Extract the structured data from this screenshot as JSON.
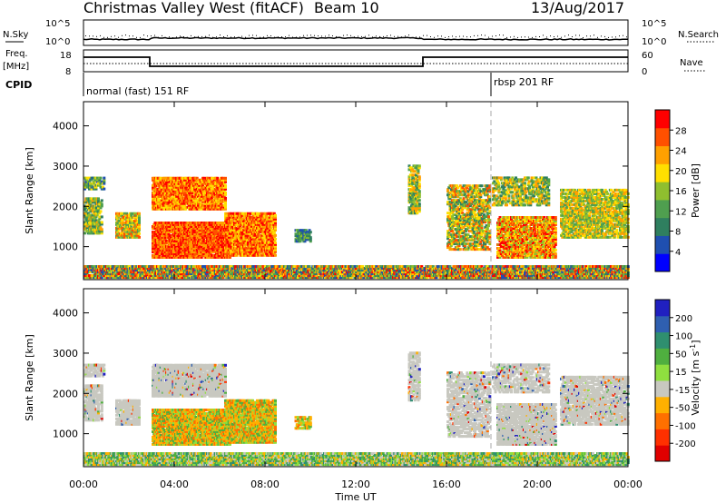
{
  "header": {
    "title": "Christmas Valley West (fitACF)",
    "beam": "Beam 10",
    "date": "13/Aug/2017"
  },
  "aux_labels": {
    "nsky": "N.Sky",
    "nsearch": "N.Search",
    "freq": "Freq.",
    "freq_unit": "[MHz]",
    "nave": "Nave",
    "cpid": "CPID",
    "cpid_1": "normal (fast) 151 RF",
    "cpid_2": "rbsp 201 RF",
    "noise_top": "10^5",
    "noise_bottom": "10^0",
    "freq_top": "18",
    "freq_bottom": "8",
    "nave_top": "60",
    "nave_bottom": "0"
  },
  "colors": {
    "power_scale": [
      "#0000ff",
      "#1f4fb0",
      "#2f7f5f",
      "#4f9f4f",
      "#8fbf2f",
      "#ffdf00",
      "#ffa000",
      "#ff5000",
      "#ff0000"
    ],
    "velocity_scale": [
      "#2020c0",
      "#2f5fb0",
      "#2f8f6f",
      "#4faf3f",
      "#8fdf3f",
      "#c8c8c0",
      "#ffb000",
      "#ff7000",
      "#ff3000",
      "#e00000"
    ],
    "ground": "#c8c8c0"
  },
  "chart_data": [
    {
      "type": "heatmap",
      "name": "power",
      "xlabel": "",
      "ylabel": "Slant Range [km]",
      "ylim": [
        180,
        4600
      ],
      "yticks": [
        "1000",
        "2000",
        "3000",
        "4000"
      ],
      "colorbar_label": "Power [dB]",
      "colorbar_ticks": [
        "4",
        "8",
        "12",
        "16",
        "20",
        "24",
        "28"
      ],
      "colorbar_range": [
        0,
        32
      ]
    },
    {
      "type": "heatmap",
      "name": "velocity",
      "xlabel": "Time UT",
      "ylabel": "Slant Range [km]",
      "ylim": [
        180,
        4600
      ],
      "yticks": [
        "1000",
        "2000",
        "3000",
        "4000"
      ],
      "xticks": [
        "00:00",
        "04:00",
        "08:00",
        "12:00",
        "16:00",
        "20:00",
        "00:00"
      ],
      "colorbar_label": "Velocity [m s^-1]",
      "colorbar_ticks": [
        "200",
        "100",
        "50",
        "15",
        "-15",
        "-50",
        "-100",
        "-200"
      ]
    }
  ]
}
